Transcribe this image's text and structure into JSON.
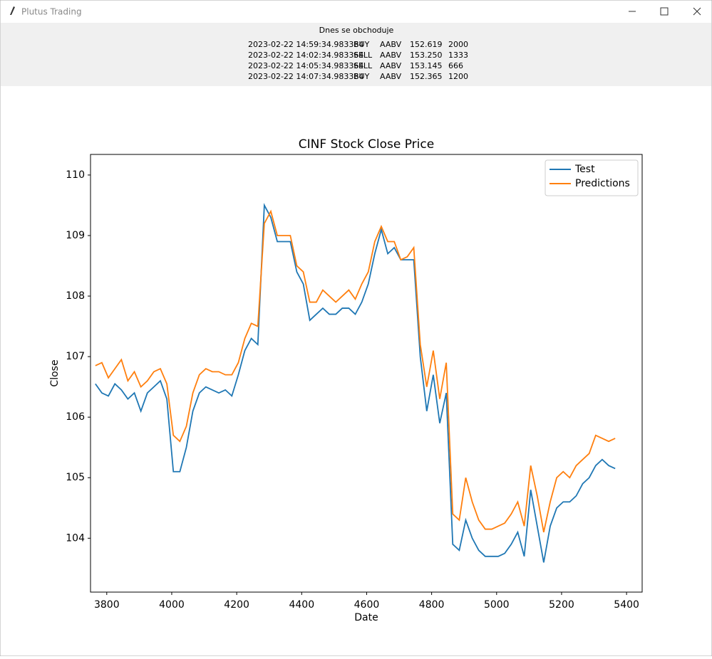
{
  "window": {
    "title": "Plutus Trading"
  },
  "header": {
    "title": "Dnes se obchoduje",
    "trades": [
      [
        "2023-02-22 14:59:34.983364",
        "BUY",
        "AABV",
        "152.619",
        2000
      ],
      [
        "2023-02-22 14:02:34.983364",
        "SELL",
        "AABV",
        "153.250",
        1333
      ],
      [
        "2023-02-22 14:05:34.983364",
        "SELL",
        "AABV",
        "153.145",
        666
      ],
      [
        "2023-02-22 14:07:34.983364",
        "BUY",
        "AABV",
        "152.365",
        1200
      ]
    ]
  },
  "chart_data": {
    "type": "line",
    "title": "CINF Stock Close Price",
    "x_label": "Date",
    "y_label": "Close",
    "x": [
      3765,
      3785,
      3805,
      3825,
      3845,
      3865,
      3885,
      3905,
      3925,
      3945,
      3965,
      3985,
      4005,
      4025,
      4045,
      4065,
      4085,
      4105,
      4125,
      4145,
      4165,
      4185,
      4205,
      4225,
      4245,
      4265,
      4285,
      4305,
      4325,
      4345,
      4365,
      4385,
      4405,
      4425,
      4445,
      4465,
      4485,
      4505,
      4525,
      4545,
      4565,
      4585,
      4605,
      4625,
      4645,
      4665,
      4685,
      4705,
      4725,
      4745,
      4765,
      4785,
      4805,
      4825,
      4845,
      4865,
      4885,
      4905,
      4925,
      4945,
      4965,
      4985,
      5005,
      5025,
      5045,
      5065,
      5085,
      5105,
      5125,
      5145,
      5165,
      5185,
      5205,
      5225,
      5245,
      5265,
      5285,
      5305,
      5325,
      5345,
      5365
    ],
    "series": [
      {
        "name": "Test",
        "color": "#1f77b4",
        "values": [
          106.55,
          106.4,
          106.35,
          106.55,
          106.45,
          106.3,
          106.4,
          106.1,
          106.4,
          106.5,
          106.6,
          106.3,
          105.1,
          105.1,
          105.5,
          106.1,
          106.4,
          106.5,
          106.45,
          106.4,
          106.45,
          106.35,
          106.7,
          107.1,
          107.3,
          107.2,
          109.5,
          109.3,
          108.9,
          108.9,
          108.9,
          108.4,
          108.2,
          107.6,
          107.7,
          107.8,
          107.7,
          107.7,
          107.8,
          107.8,
          107.7,
          107.9,
          108.2,
          108.7,
          109.1,
          108.7,
          108.8,
          108.6,
          108.6,
          108.6,
          107.0,
          106.1,
          106.7,
          105.9,
          106.4,
          103.9,
          103.8,
          104.3,
          104.0,
          103.8,
          103.7,
          103.7,
          103.7,
          103.75,
          103.9,
          104.1,
          103.7,
          104.8,
          104.2,
          103.6,
          104.2,
          104.5,
          104.6,
          104.6,
          104.7,
          104.9,
          105.0,
          105.2,
          105.3,
          105.2,
          105.15
        ]
      },
      {
        "name": "Predictions",
        "color": "#ff7f0e",
        "values": [
          106.85,
          106.9,
          106.65,
          106.8,
          106.95,
          106.6,
          106.75,
          106.5,
          106.6,
          106.75,
          106.8,
          106.55,
          105.7,
          105.6,
          105.85,
          106.4,
          106.7,
          106.8,
          106.75,
          106.75,
          106.7,
          106.7,
          106.9,
          107.3,
          107.55,
          107.5,
          109.2,
          109.4,
          109.0,
          109.0,
          109.0,
          108.5,
          108.4,
          107.9,
          107.9,
          108.1,
          108.0,
          107.9,
          108.0,
          108.1,
          107.95,
          108.2,
          108.4,
          108.9,
          109.15,
          108.9,
          108.9,
          108.6,
          108.65,
          108.8,
          107.2,
          106.5,
          107.1,
          106.3,
          106.9,
          104.4,
          104.3,
          105.0,
          104.6,
          104.3,
          104.15,
          104.15,
          104.2,
          104.25,
          104.4,
          104.6,
          104.2,
          105.2,
          104.7,
          104.1,
          104.6,
          105.0,
          105.1,
          105.0,
          105.2,
          105.3,
          105.4,
          105.7,
          105.65,
          105.6,
          105.65
        ]
      }
    ],
    "xlim": [
      3750,
      5448
    ],
    "ylim": [
      103.11,
      110.34
    ],
    "xticks": [
      3800,
      4000,
      4200,
      4400,
      4600,
      4800,
      5000,
      5200,
      5400
    ],
    "yticks": [
      104,
      105,
      106,
      107,
      108,
      109,
      110
    ],
    "legend": "upper right"
  }
}
